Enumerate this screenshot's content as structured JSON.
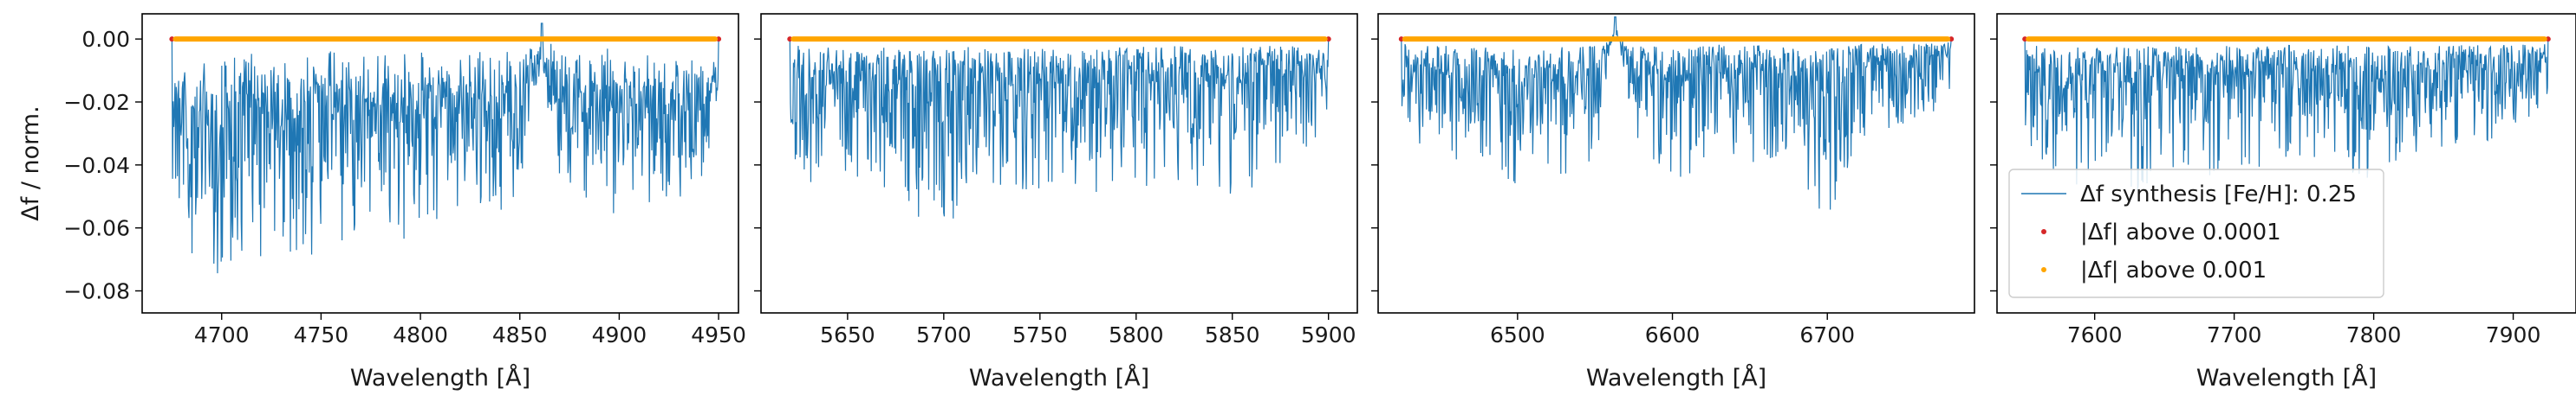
{
  "chart_data": [
    {
      "type": "line",
      "xlabel": "Wavelength [Å]",
      "ylabel": "Δf / norm.",
      "xlim": [
        4660,
        4960
      ],
      "ylim": [
        -0.087,
        0.008
      ],
      "x_ticks": [
        4700,
        4750,
        4800,
        4850,
        4900,
        4950
      ],
      "y_ticks": [
        0.0,
        -0.02,
        -0.04,
        -0.06,
        -0.08
      ],
      "x_range": [
        4675,
        4950
      ],
      "spike": {
        "x": 4861,
        "value": 0.005
      },
      "series": [
        {
          "x": [
            4675,
            4690,
            4705,
            4720,
            4735,
            4750,
            4765,
            4780,
            4795,
            4810,
            4825,
            4840,
            4850,
            4861,
            4870,
            4885,
            4900,
            4915,
            4930,
            4945,
            4950
          ],
          "y": [
            -0.04,
            -0.085,
            -0.065,
            -0.058,
            -0.06,
            -0.062,
            -0.055,
            -0.05,
            -0.066,
            -0.048,
            -0.055,
            -0.05,
            -0.045,
            0.005,
            -0.045,
            -0.048,
            -0.045,
            -0.046,
            -0.042,
            -0.04,
            -0.02
          ]
        }
      ]
    },
    {
      "type": "line",
      "xlabel": "Wavelength [Å]",
      "xlim": [
        5605,
        5915
      ],
      "ylim": [
        -0.087,
        0.008
      ],
      "x_ticks": [
        5650,
        5700,
        5750,
        5800,
        5850,
        5900
      ],
      "x_range": [
        5620,
        5900
      ],
      "series": [
        {
          "x": [
            5620,
            5640,
            5660,
            5680,
            5700,
            5720,
            5740,
            5760,
            5780,
            5800,
            5820,
            5840,
            5860,
            5880,
            5900
          ],
          "y": [
            -0.04,
            -0.05,
            -0.045,
            -0.055,
            -0.061,
            -0.045,
            -0.05,
            -0.048,
            -0.05,
            -0.049,
            -0.045,
            -0.05,
            -0.048,
            -0.04,
            -0.03
          ]
        }
      ]
    },
    {
      "type": "line",
      "xlabel": "Wavelength [Å]",
      "xlim": [
        6410,
        6795
      ],
      "ylim": [
        -0.087,
        0.008
      ],
      "x_ticks": [
        6500,
        6600,
        6700
      ],
      "x_range": [
        6425,
        6780
      ],
      "spike": {
        "x": 6563,
        "value": 0.007
      },
      "series": [
        {
          "x": [
            6425,
            6450,
            6475,
            6500,
            6525,
            6550,
            6563,
            6575,
            6600,
            6625,
            6650,
            6675,
            6700,
            6725,
            6750,
            6780
          ],
          "y": [
            -0.028,
            -0.04,
            -0.038,
            -0.048,
            -0.045,
            -0.042,
            0.007,
            -0.03,
            -0.05,
            -0.035,
            -0.04,
            -0.038,
            -0.06,
            -0.03,
            -0.028,
            -0.02
          ]
        }
      ]
    },
    {
      "type": "line",
      "xlabel": "Wavelength [Å]",
      "xlim": [
        7530,
        7945
      ],
      "ylim": [
        -0.087,
        0.008
      ],
      "x_ticks": [
        7600,
        7700,
        7800,
        7900
      ],
      "x_range": [
        7550,
        7925
      ],
      "series": [
        {
          "x": [
            7550,
            7575,
            7600,
            7625,
            7650,
            7675,
            7700,
            7725,
            7750,
            7775,
            7800,
            7825,
            7850,
            7875,
            7900,
            7925
          ],
          "y": [
            -0.035,
            -0.045,
            -0.048,
            -0.05,
            -0.045,
            -0.045,
            -0.04,
            -0.042,
            -0.038,
            -0.04,
            -0.046,
            -0.038,
            -0.035,
            -0.033,
            -0.03,
            -0.02
          ]
        }
      ]
    }
  ],
  "legend": {
    "placement": "lower-left",
    "entries": [
      {
        "label": "Δf synthesis [Fe/H]: 0.25",
        "kind": "line",
        "color": "#1f77b4"
      },
      {
        "label": "|Δf| above 0.0001",
        "kind": "dot",
        "color": "#d62728"
      },
      {
        "label": "|Δf| above 0.001",
        "kind": "dot",
        "color": "#ffa500"
      }
    ]
  },
  "colors": {
    "line": "#1f77b4",
    "red": "#d62728",
    "orange": "#ffa500",
    "axis": "#000000"
  }
}
